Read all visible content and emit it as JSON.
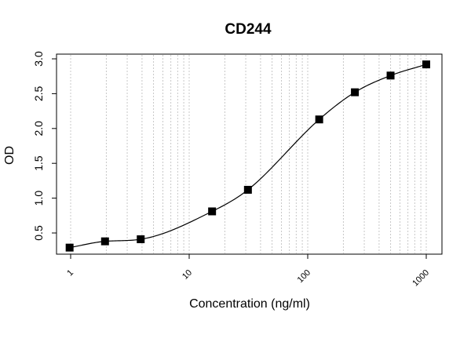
{
  "chart_data": {
    "type": "scatter",
    "title": "CD244",
    "xlabel": "Concentration (ng/ml)",
    "ylabel": "OD",
    "x_scale": "log",
    "xlim": [
      1,
      1000
    ],
    "ylim": [
      0.3,
      3.0
    ],
    "x_ticks": [
      1,
      10,
      100,
      1000
    ],
    "x_tick_labels": [
      "1",
      "10",
      "100",
      "1000"
    ],
    "y_ticks": [
      0.5,
      1.0,
      1.5,
      2.0,
      2.5,
      3.0
    ],
    "y_tick_labels": [
      "0.5",
      "1.0",
      "1.5",
      "2.0",
      "2.5",
      "3.0"
    ],
    "grid": "vertical dotted at log minor ticks",
    "series": [
      {
        "points": [
          {
            "x": 0.98,
            "y": 0.29
          },
          {
            "x": 1.95,
            "y": 0.38
          },
          {
            "x": 3.9,
            "y": 0.41
          },
          {
            "x": 15.6,
            "y": 0.81
          },
          {
            "x": 31.3,
            "y": 1.12
          },
          {
            "x": 125,
            "y": 2.13
          },
          {
            "x": 250,
            "y": 2.52
          },
          {
            "x": 500,
            "y": 2.76
          },
          {
            "x": 1000,
            "y": 2.92
          }
        ],
        "fit": "4PL"
      }
    ]
  }
}
